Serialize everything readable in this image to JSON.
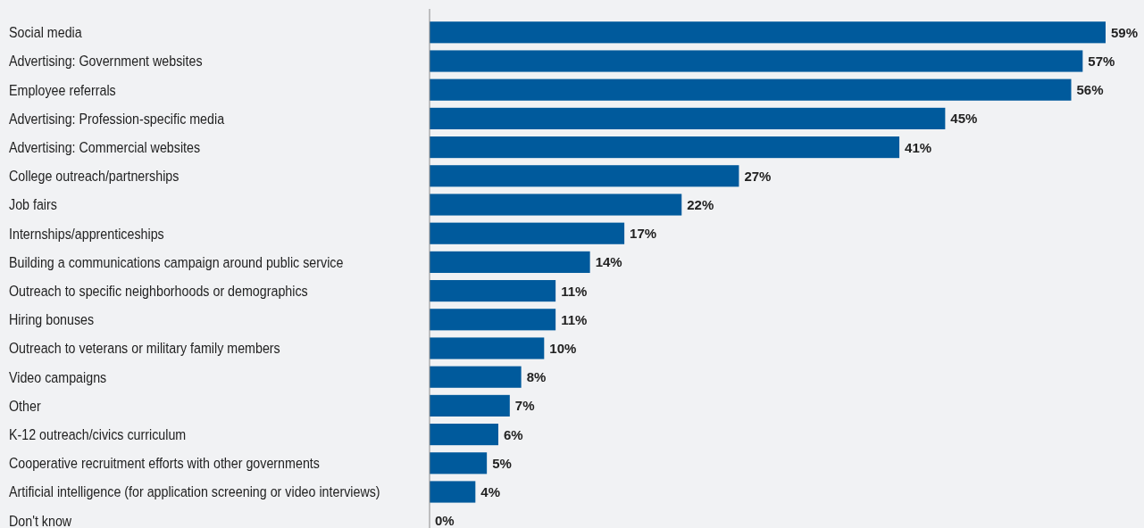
{
  "chart_data": {
    "type": "bar",
    "orientation": "horizontal",
    "categories": [
      "Social media",
      "Advertising: Government websites",
      "Employee referrals",
      "Advertising: Profession-specific media",
      "Advertising: Commercial websites",
      "College outreach/partnerships",
      "Job fairs",
      "Internships/apprenticeships",
      "Building a communications campaign around public service",
      "Outreach to specific neighborhoods or demographics",
      "Hiring bonuses",
      "Outreach to veterans or military family members",
      "Video campaigns",
      "Other",
      "K-12 outreach/civics curriculum",
      "Cooperative recruitment efforts with other governments",
      "Artificial intelligence (for application screening or video interviews)",
      "Don't know"
    ],
    "values": [
      59,
      57,
      56,
      45,
      41,
      27,
      22,
      17,
      14,
      11,
      11,
      10,
      8,
      7,
      6,
      5,
      4,
      0
    ],
    "value_labels": [
      "59%",
      "57%",
      "56%",
      "45%",
      "41%",
      "27%",
      "22%",
      "17%",
      "14%",
      "11%",
      "11%",
      "10%",
      "8%",
      "7%",
      "6%",
      "5%",
      "4%",
      "0%"
    ],
    "color": "#005a9c"
  }
}
